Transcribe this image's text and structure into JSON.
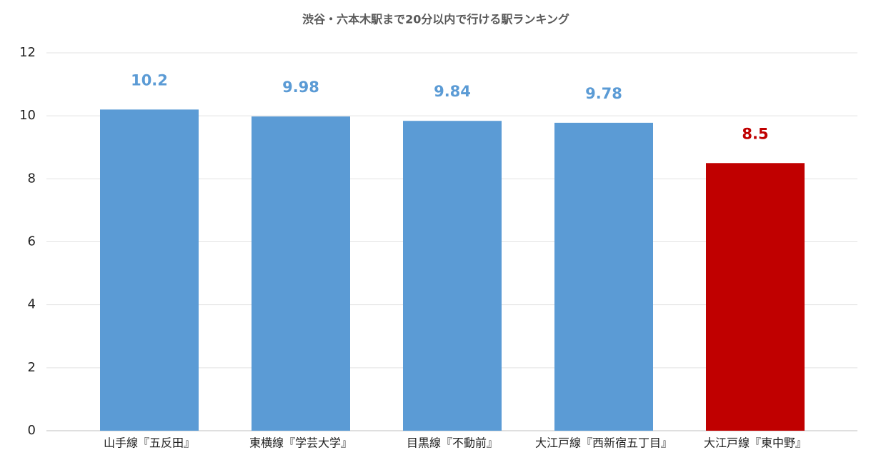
{
  "chart_data": {
    "type": "bar",
    "title": "渋谷・六本木駅まで20分以内で行ける駅ランキング",
    "categories": [
      "山手線『五反田』",
      "東横線『学芸大学』",
      "目黒線『不動前』",
      "大江戸線『西新宿五丁目』",
      "大江戸線『東中野』"
    ],
    "values": [
      10.2,
      9.98,
      9.84,
      9.78,
      8.5
    ],
    "colors": [
      "#5b9bd5",
      "#5b9bd5",
      "#5b9bd5",
      "#5b9bd5",
      "#c00000"
    ],
    "ylim": [
      0,
      12
    ],
    "yticks": [
      0,
      2,
      4,
      6,
      8,
      10,
      12
    ],
    "grid": true
  }
}
